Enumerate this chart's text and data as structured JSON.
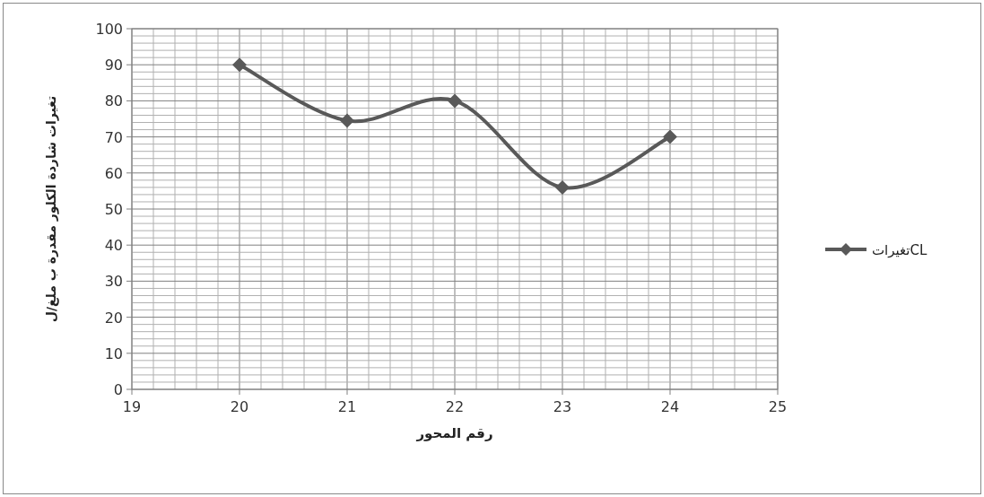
{
  "chart_data": {
    "type": "line",
    "xlabel": "رقم المحور",
    "ylabel": "تغيرات شاردة الكلور مقدرة ب ملغ/ل",
    "x": [
      20,
      21,
      22,
      23,
      24
    ],
    "series": [
      {
        "name": "تغيراتCL",
        "color": "#595959",
        "values": [
          90,
          74.5,
          80,
          56,
          70
        ]
      }
    ],
    "xlim": [
      19,
      25
    ],
    "xticks": [
      19,
      20,
      21,
      22,
      23,
      24,
      25
    ],
    "ylim": [
      0,
      100
    ],
    "yticks": [
      0,
      10,
      20,
      30,
      40,
      50,
      60,
      70,
      80,
      90,
      100
    ],
    "grid": true,
    "legend": "right",
    "marker": "diamond",
    "line_style": "solid"
  }
}
